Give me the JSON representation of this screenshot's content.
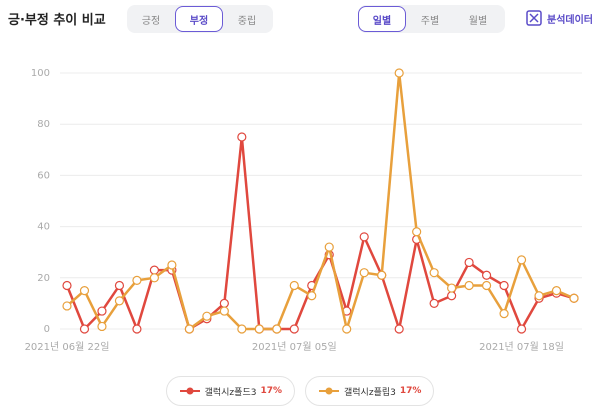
{
  "header": {
    "title": "긍·부정 추이 비교",
    "sentiment_tabs": [
      "긍정",
      "부정",
      "중립"
    ],
    "sentiment_active": 1,
    "period_tabs": [
      "일별",
      "주별",
      "월별"
    ],
    "period_active": 0,
    "export_button": "분석데이터"
  },
  "chart_data": {
    "type": "line",
    "categories": [
      "2021년 06월 22일",
      null,
      null,
      null,
      null,
      null,
      null,
      null,
      null,
      null,
      null,
      null,
      null,
      "2021년 07월 05일",
      null,
      null,
      null,
      null,
      null,
      null,
      null,
      null,
      null,
      null,
      null,
      null,
      "2021년 07월 18일",
      null,
      null,
      null
    ],
    "series": [
      {
        "name": "갤럭시z폴드3",
        "share": "17%",
        "color": "#e0483e",
        "values": [
          17,
          0,
          7,
          17,
          0,
          23,
          23,
          0,
          4,
          10,
          75,
          0,
          0,
          0,
          17,
          29,
          7,
          36,
          21,
          0,
          35,
          10,
          13,
          26,
          21,
          17,
          0,
          12,
          14,
          12
        ]
      },
      {
        "name": "갤럭시z플립3",
        "share": "17%",
        "color": "#e8a03c",
        "values": [
          9,
          15,
          1,
          11,
          19,
          20,
          25,
          0,
          5,
          7,
          0,
          0,
          0,
          17,
          13,
          32,
          0,
          22,
          21,
          100,
          38,
          22,
          16,
          17,
          17,
          6,
          27,
          13,
          15,
          12
        ]
      }
    ],
    "ylim": [
      0,
      100
    ],
    "yticks": [
      0,
      20,
      40,
      60,
      80,
      100
    ],
    "grid": true
  }
}
